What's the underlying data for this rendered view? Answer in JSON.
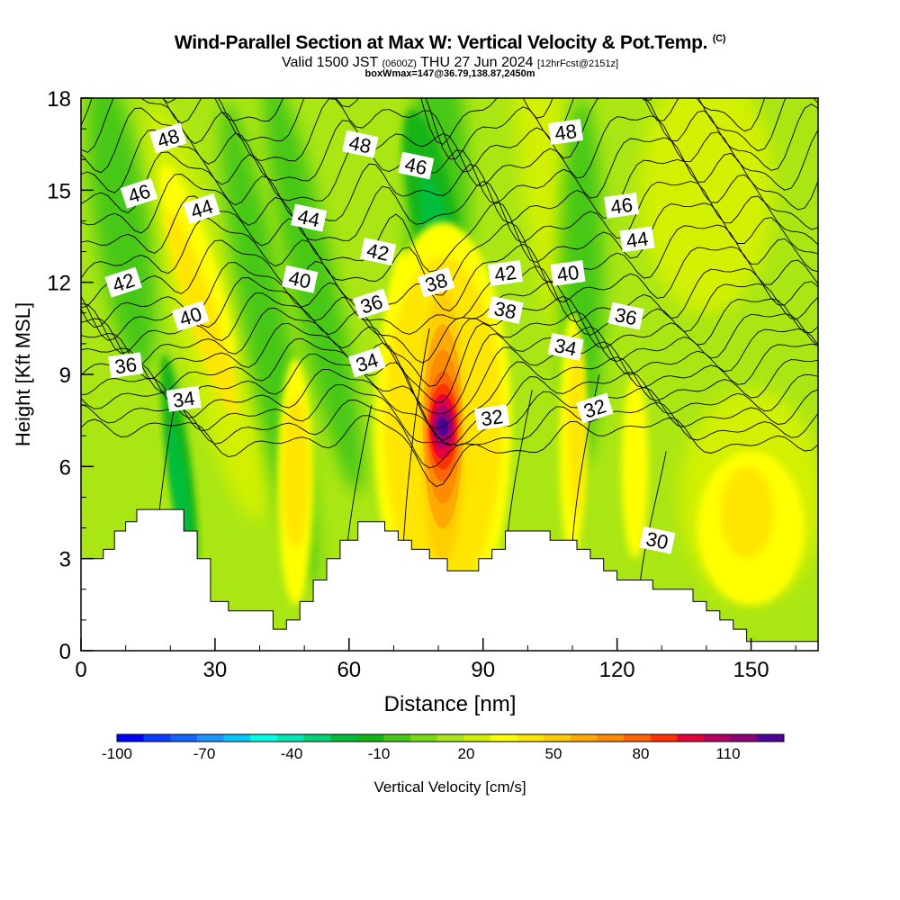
{
  "header": {
    "title": "Wind-Parallel Section at Max W: Vertical Velocity & Pot.Temp.",
    "copyright": "(C)",
    "valid_prefix": "Valid 1500 JST",
    "valid_utc": "(0600Z)",
    "valid_date": "THU 27 Jun 2024",
    "forecast": "[12hrFcst@2151z]",
    "box_info": "boxWmax=147@36.79,138.87,2450m"
  },
  "chart_data": {
    "type": "heatmap",
    "xlabel": "Distance [nm]",
    "ylabel": "Height [Kft MSL]",
    "xlim": [
      0,
      165
    ],
    "ylim": [
      0,
      18
    ],
    "x_ticks": [
      0,
      30,
      60,
      90,
      120,
      150
    ],
    "y_ticks": [
      0,
      3,
      6,
      9,
      12,
      15,
      18
    ],
    "colorbar": {
      "label": "Vertical Velocity [cm/s]",
      "min": -100,
      "max": 120,
      "step": 10,
      "tick_labels": [
        -100,
        -70,
        -40,
        -10,
        20,
        50,
        80,
        110
      ],
      "colors": [
        "#0000ff",
        "#0a3cff",
        "#1464ff",
        "#1e96ff",
        "#00c8ff",
        "#00ffe6",
        "#00e6b4",
        "#00d278",
        "#00be3c",
        "#14b414",
        "#46c814",
        "#78dc14",
        "#aae614",
        "#d2f000",
        "#ffff00",
        "#ffe600",
        "#ffcd00",
        "#ffaa00",
        "#ff8c00",
        "#ff6400",
        "#ff3200",
        "#e6003c",
        "#b40064",
        "#8c0078",
        "#500096"
      ]
    },
    "theta_contour_labels": [
      {
        "text": "48",
        "x": 19.5,
        "y": 16.7
      },
      {
        "text": "48",
        "x": 62.5,
        "y": 16.5
      },
      {
        "text": "48",
        "x": 108.5,
        "y": 16.9
      },
      {
        "text": "46",
        "x": 13,
        "y": 14.9
      },
      {
        "text": "46",
        "x": 75,
        "y": 15.8
      },
      {
        "text": "46",
        "x": 121,
        "y": 14.5
      },
      {
        "text": "44",
        "x": 27,
        "y": 14.4
      },
      {
        "text": "44",
        "x": 51,
        "y": 14.1
      },
      {
        "text": "44",
        "x": 124.5,
        "y": 13.4
      },
      {
        "text": "42",
        "x": 9.5,
        "y": 12.0
      },
      {
        "text": "42",
        "x": 66.5,
        "y": 13.0
      },
      {
        "text": "42",
        "x": 95,
        "y": 12.3
      },
      {
        "text": "40",
        "x": 24.5,
        "y": 10.9
      },
      {
        "text": "40",
        "x": 49,
        "y": 12.1
      },
      {
        "text": "40",
        "x": 109,
        "y": 12.3
      },
      {
        "text": "38",
        "x": 79.5,
        "y": 12.0
      },
      {
        "text": "38",
        "x": 95,
        "y": 11.1
      },
      {
        "text": "36",
        "x": 10,
        "y": 9.3
      },
      {
        "text": "36",
        "x": 65,
        "y": 11.3
      },
      {
        "text": "36",
        "x": 122,
        "y": 10.9
      },
      {
        "text": "34",
        "x": 23,
        "y": 8.2
      },
      {
        "text": "34",
        "x": 64,
        "y": 9.4
      },
      {
        "text": "34",
        "x": 108.5,
        "y": 9.9
      },
      {
        "text": "32",
        "x": 92,
        "y": 7.6
      },
      {
        "text": "32",
        "x": 115,
        "y": 7.9
      },
      {
        "text": "30",
        "x": 129,
        "y": 3.6
      }
    ],
    "terrain": [
      [
        0,
        3.0
      ],
      [
        5,
        3.0
      ],
      [
        5,
        3.3
      ],
      [
        7.5,
        3.3
      ],
      [
        7.5,
        3.9
      ],
      [
        10,
        3.9
      ],
      [
        10,
        4.2
      ],
      [
        12.5,
        4.2
      ],
      [
        12.5,
        4.6
      ],
      [
        23,
        4.6
      ],
      [
        23,
        3.9
      ],
      [
        26,
        3.9
      ],
      [
        26,
        3.0
      ],
      [
        29,
        3.0
      ],
      [
        29,
        1.6
      ],
      [
        33,
        1.6
      ],
      [
        33,
        1.3
      ],
      [
        43,
        1.3
      ],
      [
        43,
        0.7
      ],
      [
        46,
        0.7
      ],
      [
        46,
        1.0
      ],
      [
        49,
        1.0
      ],
      [
        49,
        1.6
      ],
      [
        52,
        1.6
      ],
      [
        52,
        2.3
      ],
      [
        55,
        2.3
      ],
      [
        55,
        3.0
      ],
      [
        58,
        3.0
      ],
      [
        58,
        3.6
      ],
      [
        62,
        3.6
      ],
      [
        62,
        4.2
      ],
      [
        68,
        4.2
      ],
      [
        68,
        3.9
      ],
      [
        71,
        3.9
      ],
      [
        71,
        3.6
      ],
      [
        74,
        3.6
      ],
      [
        74,
        3.3
      ],
      [
        78,
        3.3
      ],
      [
        78,
        3.0
      ],
      [
        82,
        3.0
      ],
      [
        82,
        2.6
      ],
      [
        89,
        2.6
      ],
      [
        89,
        3.0
      ],
      [
        92,
        3.0
      ],
      [
        92,
        3.3
      ],
      [
        95,
        3.3
      ],
      [
        95,
        3.9
      ],
      [
        105,
        3.9
      ],
      [
        105,
        3.6
      ],
      [
        111,
        3.6
      ],
      [
        111,
        3.3
      ],
      [
        114,
        3.3
      ],
      [
        114,
        3.0
      ],
      [
        117,
        3.0
      ],
      [
        117,
        2.6
      ],
      [
        120,
        2.6
      ],
      [
        120,
        2.3
      ],
      [
        128,
        2.3
      ],
      [
        128,
        2.0
      ],
      [
        137,
        2.0
      ],
      [
        137,
        1.6
      ],
      [
        140,
        1.6
      ],
      [
        140,
        1.3
      ],
      [
        143,
        1.3
      ],
      [
        143,
        1.0
      ],
      [
        146,
        1.0
      ],
      [
        146,
        0.7
      ],
      [
        149,
        0.7
      ],
      [
        149,
        0.3
      ],
      [
        165,
        0.3
      ],
      [
        165,
        0
      ],
      [
        0,
        0
      ]
    ]
  }
}
